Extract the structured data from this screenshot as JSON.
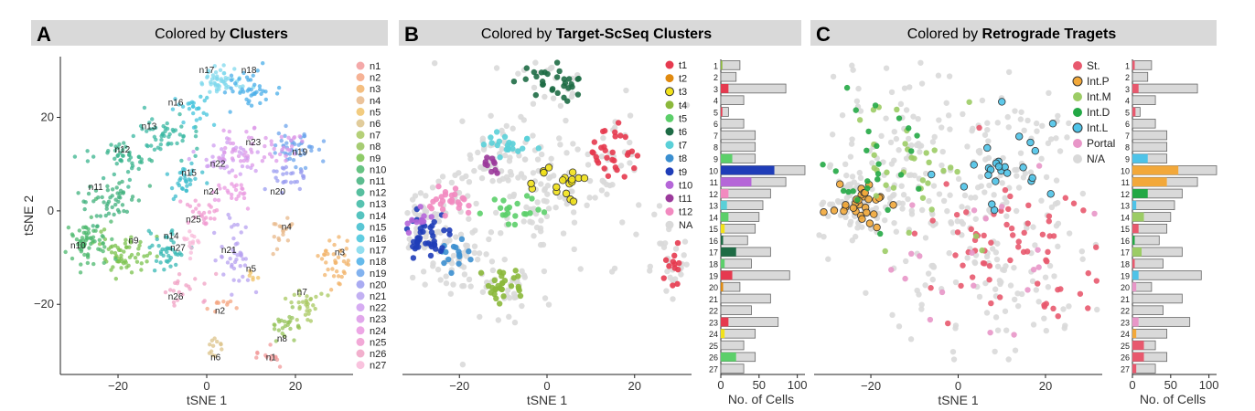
{
  "panels": [
    {
      "letter": "A",
      "title_prefix": "Colored by ",
      "title_bold": "Clusters"
    },
    {
      "letter": "B",
      "title_prefix": "Colored by ",
      "title_bold": "Target-ScSeq Clusters"
    },
    {
      "letter": "C",
      "title_prefix": "Colored by ",
      "title_bold": "Retrograde Tragets"
    }
  ],
  "chart_data": [
    {
      "type": "scatter",
      "title": "Colored by Clusters",
      "xlabel": "tSNE 1",
      "ylabel": "tSNE 2",
      "xlim": [
        -33,
        33
      ],
      "ylim": [
        -35,
        33
      ],
      "xticks": [
        -20,
        0,
        20
      ],
      "xtick_labels": [
        "−20",
        "0",
        "20"
      ],
      "yticks": [
        -20,
        0,
        20
      ],
      "ytick_labels": [
        "−20",
        "0",
        "20"
      ],
      "legend": [
        "n1",
        "n2",
        "n3",
        "n4",
        "n5",
        "n6",
        "n7",
        "n8",
        "n9",
        "n10",
        "n11",
        "n12",
        "n13",
        "n14",
        "n15",
        "n16",
        "n17",
        "n18",
        "n19",
        "n20",
        "n21",
        "n22",
        "n23",
        "n24",
        "n25",
        "n26",
        "n27"
      ],
      "colors": [
        "#f29a9a",
        "#f4a582",
        "#f2b36a",
        "#e8b88a",
        "#f0c36a",
        "#dcc38a",
        "#a8c860",
        "#96c35a",
        "#7ac24c",
        "#4cb86e",
        "#3fb07c",
        "#3ab48e",
        "#38b7a2",
        "#37b8b4",
        "#3cbccc",
        "#44c4dc",
        "#7fd8ec",
        "#4aaee8",
        "#6ca4ec",
        "#9a9cf0",
        "#b7a2f0",
        "#cf9ef0",
        "#dc98e8",
        "#ea98e0",
        "#f09ad0",
        "#f0a2c4",
        "#f8b8d8"
      ],
      "clusters": [
        {
          "name": "n1",
          "x": 13,
          "y": -31,
          "sx": 1.8,
          "sy": 1.0,
          "n": 12
        },
        {
          "name": "n2",
          "x": 3,
          "y": -20,
          "sx": 1.5,
          "sy": 1.0,
          "n": 10
        },
        {
          "name": "n3",
          "x": 30,
          "y": -11,
          "sx": 2.0,
          "sy": 3.0,
          "n": 40
        },
        {
          "name": "n4",
          "x": 17,
          "y": -4,
          "sx": 1.5,
          "sy": 2.0,
          "n": 18
        },
        {
          "name": "n5",
          "x": 10,
          "y": -14,
          "sx": 0.8,
          "sy": 0.6,
          "n": 6
        },
        {
          "name": "n6",
          "x": 2,
          "y": -29,
          "sx": 1.2,
          "sy": 1.5,
          "n": 12
        },
        {
          "name": "n7",
          "x": 22,
          "y": -20,
          "sx": 1.8,
          "sy": 2.5,
          "n": 30
        },
        {
          "name": "n8",
          "x": 18,
          "y": -24,
          "sx": 2.0,
          "sy": 2.0,
          "n": 24
        },
        {
          "name": "n9",
          "x": -18,
          "y": -9,
          "sx": 3.5,
          "sy": 2.2,
          "n": 60
        },
        {
          "name": "n10",
          "x": -27,
          "y": -7,
          "sx": 3.0,
          "sy": 3.0,
          "n": 65
        },
        {
          "name": "n11",
          "x": -22,
          "y": 2,
          "sx": 3.5,
          "sy": 2.2,
          "n": 50
        },
        {
          "name": "n12",
          "x": -19,
          "y": 11,
          "sx": 3.0,
          "sy": 2.0,
          "n": 45
        },
        {
          "name": "n13",
          "x": -8,
          "y": 16,
          "sx": 3.5,
          "sy": 2.2,
          "n": 50
        },
        {
          "name": "n14",
          "x": -9,
          "y": -8,
          "sx": 2.0,
          "sy": 3.0,
          "n": 40
        },
        {
          "name": "n15",
          "x": -5,
          "y": 7,
          "sx": 2.0,
          "sy": 2.0,
          "n": 30
        },
        {
          "name": "n16",
          "x": -4,
          "y": 22,
          "sx": 2.0,
          "sy": 1.5,
          "n": 25
        },
        {
          "name": "n17",
          "x": 3,
          "y": 28,
          "sx": 3.0,
          "sy": 1.5,
          "n": 50
        },
        {
          "name": "n18",
          "x": 10,
          "y": 26,
          "sx": 3.0,
          "sy": 2.0,
          "n": 40
        },
        {
          "name": "n19",
          "x": 20,
          "y": 14,
          "sx": 3.0,
          "sy": 2.0,
          "n": 45
        },
        {
          "name": "n20",
          "x": 19,
          "y": 7,
          "sx": 2.5,
          "sy": 1.5,
          "n": 25
        },
        {
          "name": "n21",
          "x": 6,
          "y": -10,
          "sx": 2.0,
          "sy": 3.5,
          "n": 40
        },
        {
          "name": "n22",
          "x": 4,
          "y": 11,
          "sx": 3.5,
          "sy": 2.0,
          "n": 40
        },
        {
          "name": "n23",
          "x": 12,
          "y": 13,
          "sx": 4.5,
          "sy": 2.0,
          "n": 55
        },
        {
          "name": "n24",
          "x": 6,
          "y": 4,
          "sx": 2.5,
          "sy": 1.5,
          "n": 25
        },
        {
          "name": "n25",
          "x": -1,
          "y": -1,
          "sx": 2.0,
          "sy": 1.5,
          "n": 25
        },
        {
          "name": "n26",
          "x": -5,
          "y": -17,
          "sx": 2.5,
          "sy": 1.5,
          "n": 20
        },
        {
          "name": "n27",
          "x": -4,
          "y": -7,
          "sx": 1.5,
          "sy": 1.5,
          "n": 15
        }
      ],
      "annotations": [
        {
          "text": "n1",
          "x": 14.5,
          "y": -32
        },
        {
          "text": "n2",
          "x": 3,
          "y": -22
        },
        {
          "text": "n3",
          "x": 30,
          "y": -9.5
        },
        {
          "text": "n4",
          "x": 18,
          "y": -4
        },
        {
          "text": "n5",
          "x": 10,
          "y": -13
        },
        {
          "text": "n6",
          "x": 2,
          "y": -32
        },
        {
          "text": "n7",
          "x": 21.5,
          "y": -18
        },
        {
          "text": "n8",
          "x": 17,
          "y": -28
        },
        {
          "text": "n9",
          "x": -16.5,
          "y": -7
        },
        {
          "text": "n10",
          "x": -29,
          "y": -8
        },
        {
          "text": "n11",
          "x": -25,
          "y": 4.5
        },
        {
          "text": "n12",
          "x": -19,
          "y": 12.5
        },
        {
          "text": "n13",
          "x": -13,
          "y": 17.5
        },
        {
          "text": "n14",
          "x": -8,
          "y": -6
        },
        {
          "text": "n15",
          "x": -4,
          "y": 7.5
        },
        {
          "text": "n16",
          "x": -7,
          "y": 22.5
        },
        {
          "text": "n17",
          "x": 0,
          "y": 29.5
        },
        {
          "text": "n18",
          "x": 9.5,
          "y": 29.5
        },
        {
          "text": "n19",
          "x": 21,
          "y": 12
        },
        {
          "text": "n20",
          "x": 16,
          "y": 3.5
        },
        {
          "text": "n21",
          "x": 5,
          "y": -9
        },
        {
          "text": "n22",
          "x": 2.5,
          "y": 9.5
        },
        {
          "text": "n23",
          "x": 10.5,
          "y": 14
        },
        {
          "text": "n24",
          "x": 1,
          "y": 3.5
        },
        {
          "text": "n25",
          "x": -3,
          "y": -2.5
        },
        {
          "text": "n26",
          "x": -7,
          "y": -19
        },
        {
          "text": "n27",
          "x": -6.5,
          "y": -8.5
        }
      ]
    },
    {
      "type": "scatter",
      "title": "Colored by Target-ScSeq Clusters",
      "xlabel": "tSNE 1",
      "ylabel": "",
      "xlim": [
        -33,
        33
      ],
      "ylim": [
        -35,
        33
      ],
      "xticks": [
        -20,
        0,
        20
      ],
      "xtick_labels": [
        "−20",
        "0",
        "20"
      ],
      "legend": [
        "t1",
        "t2",
        "t3",
        "t4",
        "t5",
        "t6",
        "t7",
        "t8",
        "t9",
        "t10",
        "t11",
        "t12",
        "NA"
      ],
      "colors": [
        "#e63a4f",
        "#e08a10",
        "#f2e21a",
        "#8bb83b",
        "#5ccf6a",
        "#1e6b45",
        "#5ad0d8",
        "#3b8fd0",
        "#1f3db8",
        "#b566d8",
        "#9b3a9b",
        "#f28ac0",
        "#d9d9d9"
      ],
      "clusters": [
        {
          "name": "t1",
          "x": 14,
          "y": 13,
          "sx": 3.0,
          "sy": 2.5,
          "n": 30,
          "outline": false
        },
        {
          "name": "t1",
          "x": 29,
          "y": -11,
          "sx": 1.5,
          "sy": 2.5,
          "n": 12,
          "outline": false
        },
        {
          "name": "t3",
          "x": 3,
          "y": 6,
          "sx": 3.0,
          "sy": 2.0,
          "n": 18,
          "outline": true
        },
        {
          "name": "t4",
          "x": -10,
          "y": -16,
          "sx": 2.5,
          "sy": 2.0,
          "n": 30,
          "outline": false
        },
        {
          "name": "t5",
          "x": -7,
          "y": 0,
          "sx": 3.5,
          "sy": 1.5,
          "n": 20,
          "outline": false
        },
        {
          "name": "t6",
          "x": 1,
          "y": 28,
          "sx": 3.5,
          "sy": 2.5,
          "n": 30,
          "outline": false
        },
        {
          "name": "t7",
          "x": -9,
          "y": 14,
          "sx": 2.5,
          "sy": 1.5,
          "n": 20,
          "outline": false
        },
        {
          "name": "t8",
          "x": -21,
          "y": -9,
          "sx": 2.5,
          "sy": 2.0,
          "n": 15,
          "outline": false
        },
        {
          "name": "t9",
          "x": -28,
          "y": -6,
          "sx": 2.5,
          "sy": 2.5,
          "n": 45,
          "outline": false
        },
        {
          "name": "t10",
          "x": -30,
          "y": -2,
          "sx": 2.0,
          "sy": 1.5,
          "n": 10,
          "outline": false
        },
        {
          "name": "t11",
          "x": -13,
          "y": 10,
          "sx": 1.5,
          "sy": 1.5,
          "n": 10,
          "outline": false
        },
        {
          "name": "t12",
          "x": -22,
          "y": 2,
          "sx": 2.5,
          "sy": 1.5,
          "n": 25,
          "outline": false
        },
        {
          "name": "NA",
          "x": 2,
          "y": 3,
          "sx": 16,
          "sy": 15,
          "n": 400,
          "outline": false
        }
      ],
      "bars": {
        "xlabel": "No. of Cells",
        "xlim": [
          0,
          110
        ],
        "xticks": [
          0,
          50,
          100
        ],
        "xtick_labels": [
          "0",
          "50",
          "100"
        ],
        "categories": [
          "1",
          "2",
          "3",
          "4",
          "5",
          "6",
          "7",
          "8",
          "9",
          "10",
          "11",
          "12",
          "13",
          "14",
          "15",
          "16",
          "17",
          "18",
          "19",
          "20",
          "21",
          "22",
          "23",
          "24",
          "25",
          "26",
          "27"
        ],
        "colored": [
          2,
          0,
          10,
          0,
          2,
          0,
          0,
          0,
          15,
          70,
          40,
          10,
          8,
          10,
          5,
          3,
          20,
          5,
          15,
          3,
          0,
          0,
          10,
          5,
          0,
          20,
          0
        ],
        "colored_colors": [
          "#8bb83b",
          "#d9d9d9",
          "#e63a4f",
          "#d9d9d9",
          "#e63a4f",
          "#d9d9d9",
          "#d9d9d9",
          "#d9d9d9",
          "#5ccf6a",
          "#1f3db8",
          "#b566d8",
          "#f28ac0",
          "#5ad0d8",
          "#5ccf6a",
          "#f2e21a",
          "#1e6b45",
          "#1e6b45",
          "#5ccf6a",
          "#e63a4f",
          "#e08a10",
          "#d9d9d9",
          "#d9d9d9",
          "#e63a4f",
          "#f2e21a",
          "#d9d9d9",
          "#5ccf6a",
          "#d9d9d9"
        ],
        "totals": [
          25,
          20,
          85,
          30,
          10,
          30,
          45,
          45,
          45,
          110,
          85,
          65,
          55,
          50,
          45,
          35,
          65,
          40,
          90,
          25,
          65,
          40,
          75,
          45,
          30,
          45,
          30
        ]
      }
    },
    {
      "type": "scatter",
      "title": "Colored by Retrograde Tragets",
      "xlabel": "tSNE 1",
      "ylabel": "",
      "xlim": [
        -33,
        33
      ],
      "ylim": [
        -35,
        33
      ],
      "xticks": [
        -20,
        0,
        20
      ],
      "xtick_labels": [
        "−20",
        "0",
        "20"
      ],
      "legend": [
        "St.",
        "Int.P",
        "Int.M",
        "Int.D",
        "Int.L",
        "Portal",
        "N/A"
      ],
      "colors": [
        "#e8596e",
        "#f2a83a",
        "#9ccc65",
        "#23a845",
        "#4ec3e8",
        "#e896c8",
        "#d9d9d9"
      ],
      "clusters": [
        {
          "name": "St.",
          "x": 12,
          "y": -8,
          "sx": 10,
          "sy": 9,
          "n": 70,
          "outline": false
        },
        {
          "name": "Int.P",
          "x": -22,
          "y": 2,
          "sx": 3.0,
          "sy": 2.0,
          "n": 30,
          "outline": true
        },
        {
          "name": "Int.M",
          "x": -12,
          "y": 11,
          "sx": 8,
          "sy": 10,
          "n": 35,
          "outline": false
        },
        {
          "name": "Int.D",
          "x": -18,
          "y": 8,
          "sx": 6,
          "sy": 8,
          "n": 25,
          "outline": false
        },
        {
          "name": "Int.L",
          "x": 10,
          "y": 10,
          "sx": 8,
          "sy": 6,
          "n": 25,
          "outline": true
        },
        {
          "name": "Portal",
          "x": 8,
          "y": -10,
          "sx": 10,
          "sy": 10,
          "n": 20,
          "outline": false
        },
        {
          "name": "N/A",
          "x": 2,
          "y": 3,
          "sx": 16,
          "sy": 15,
          "n": 400,
          "outline": false
        }
      ],
      "bars": {
        "xlabel": "No. of Cells",
        "xlim": [
          0,
          110
        ],
        "xticks": [
          0,
          50,
          100
        ],
        "xtick_labels": [
          "0",
          "50",
          "100"
        ],
        "categories": [
          "1",
          "2",
          "3",
          "4",
          "5",
          "6",
          "7",
          "8",
          "9",
          "10",
          "11",
          "12",
          "13",
          "14",
          "15",
          "16",
          "17",
          "18",
          "19",
          "20",
          "21",
          "22",
          "23",
          "24",
          "25",
          "26",
          "27"
        ],
        "colored": [
          3,
          0,
          8,
          0,
          4,
          0,
          0,
          0,
          20,
          60,
          45,
          20,
          5,
          15,
          8,
          3,
          12,
          3,
          8,
          5,
          0,
          0,
          8,
          5,
          15,
          15,
          5
        ],
        "colored_colors": [
          "#e8596e",
          "#d9d9d9",
          "#e8596e",
          "#d9d9d9",
          "#e8596e",
          "#d9d9d9",
          "#d9d9d9",
          "#d9d9d9",
          "#4ec3e8",
          "#f2a83a",
          "#f2a83a",
          "#23a845",
          "#4ec3e8",
          "#9ccc65",
          "#e8596e",
          "#23a845",
          "#9ccc65",
          "#e8596e",
          "#4ec3e8",
          "#e896c8",
          "#d9d9d9",
          "#d9d9d9",
          "#e896c8",
          "#f2a83a",
          "#e8596e",
          "#e8596e",
          "#e8596e"
        ],
        "totals": [
          25,
          20,
          85,
          30,
          10,
          30,
          45,
          45,
          45,
          110,
          85,
          65,
          55,
          50,
          45,
          35,
          65,
          40,
          90,
          25,
          65,
          40,
          75,
          45,
          30,
          45,
          30
        ]
      }
    }
  ]
}
